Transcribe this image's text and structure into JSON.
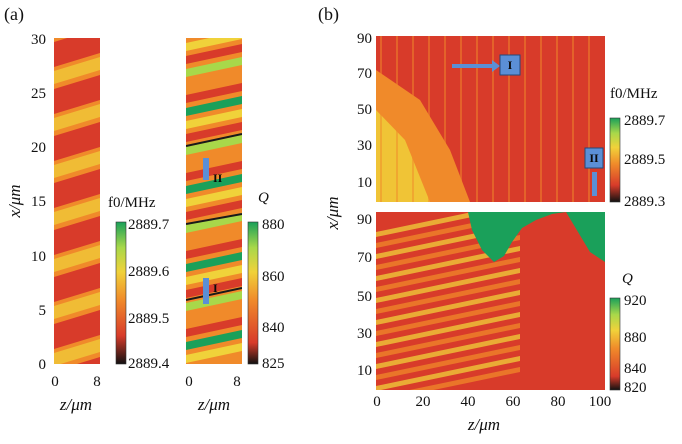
{
  "panel_labels": {
    "a": "(a)",
    "b": "(b)"
  },
  "colors": {
    "red": "#d83b2a",
    "orange": "#f08a2a",
    "yellow": "#f0d23a",
    "lightgreen": "#a8d84a",
    "green": "#1aa05a",
    "black": "#111111"
  },
  "chart_data": [
    {
      "type": "heatmap",
      "title": "",
      "panel": "(a) left",
      "xlabel": "z/μm",
      "ylabel": "x/μm",
      "xlim": [
        0,
        8
      ],
      "ylim": [
        0,
        30
      ],
      "x_ticks": [
        "0",
        "8"
      ],
      "y_ticks": [
        "0",
        "5",
        "10",
        "15",
        "20",
        "25",
        "30"
      ],
      "colorbar": {
        "title": "f0/MHz",
        "ticks": [
          "2889.7",
          "2889.6",
          "2889.5",
          "2889.4"
        ],
        "range": [
          2889.4,
          2889.7
        ]
      },
      "description_values": {
        "stripe_count": 7,
        "pattern": "diagonal alternating red/orange/yellow stripes"
      }
    },
    {
      "type": "heatmap",
      "title": "",
      "panel": "(a) right",
      "xlabel": "z/μm",
      "xlim": [
        0,
        8
      ],
      "ylim": [
        0,
        30
      ],
      "x_ticks": [
        "0",
        "8"
      ],
      "colorbar": {
        "title": "Q",
        "ticks": [
          "880",
          "860",
          "840",
          "825"
        ],
        "range": [
          825,
          880
        ]
      },
      "markers": [
        {
          "label": "II",
          "y": 16
        },
        {
          "label": "I",
          "y": 6
        }
      ]
    },
    {
      "type": "heatmap",
      "title": "",
      "panel": "(b) top",
      "ylabel": "x/μm",
      "xlim": [
        0,
        100
      ],
      "ylim": [
        0,
        90
      ],
      "y_ticks": [
        "10",
        "30",
        "50",
        "70",
        "90"
      ],
      "colorbar": {
        "title": "f0/MHz",
        "ticks": [
          "2889.7",
          "2889.5",
          "2889.3"
        ],
        "range": [
          2889.3,
          2889.7
        ]
      },
      "markers": [
        {
          "label": "I",
          "x": 58,
          "y": 73
        },
        {
          "label": "II",
          "x": 93,
          "y": 26
        }
      ]
    },
    {
      "type": "heatmap",
      "title": "",
      "panel": "(b) bottom",
      "xlabel": "z/μm",
      "ylabel": "x/μm",
      "xlim": [
        0,
        100
      ],
      "ylim": [
        0,
        90
      ],
      "x_ticks": [
        "0",
        "20",
        "40",
        "60",
        "80",
        "100"
      ],
      "y_ticks": [
        "10",
        "30",
        "50",
        "70",
        "90"
      ],
      "colorbar": {
        "title": "Q",
        "ticks": [
          "920",
          "880",
          "840",
          "820"
        ],
        "range": [
          820,
          920
        ]
      }
    }
  ],
  "text": {
    "a_xlabel_left": "z/μm",
    "a_xlabel_right": "z/μm",
    "a_ylabel": "x/μm",
    "b_xlabel": "z/μm",
    "b_ylabel": "x/μm",
    "a_left_x0": "0",
    "a_left_x8": "8",
    "a_right_x0": "0",
    "a_right_x8": "8",
    "a_y": [
      "0",
      "5",
      "10",
      "15",
      "20",
      "25",
      "30"
    ],
    "a_cb_f": [
      "2889.7",
      "2889.6",
      "2889.5",
      "2889.4"
    ],
    "a_cb_q": [
      "880",
      "860",
      "840",
      "825"
    ],
    "a_cb_f_title": "f0/MHz",
    "a_cb_q_title": "Q",
    "b_top_y": [
      "90",
      "70",
      "50",
      "30",
      "10"
    ],
    "b_bot_y": [
      "90",
      "70",
      "50",
      "30",
      "10"
    ],
    "b_x": [
      "0",
      "20",
      "40",
      "60",
      "80",
      "100"
    ],
    "b_cb_f": [
      "2889.7",
      "2889.5",
      "2889.3"
    ],
    "b_cb_q": [
      "920",
      "880",
      "840",
      "820"
    ],
    "b_cb_f_title": "f0/MHz",
    "b_cb_q_title": "Q",
    "marker_I": "I",
    "marker_II": "II"
  }
}
